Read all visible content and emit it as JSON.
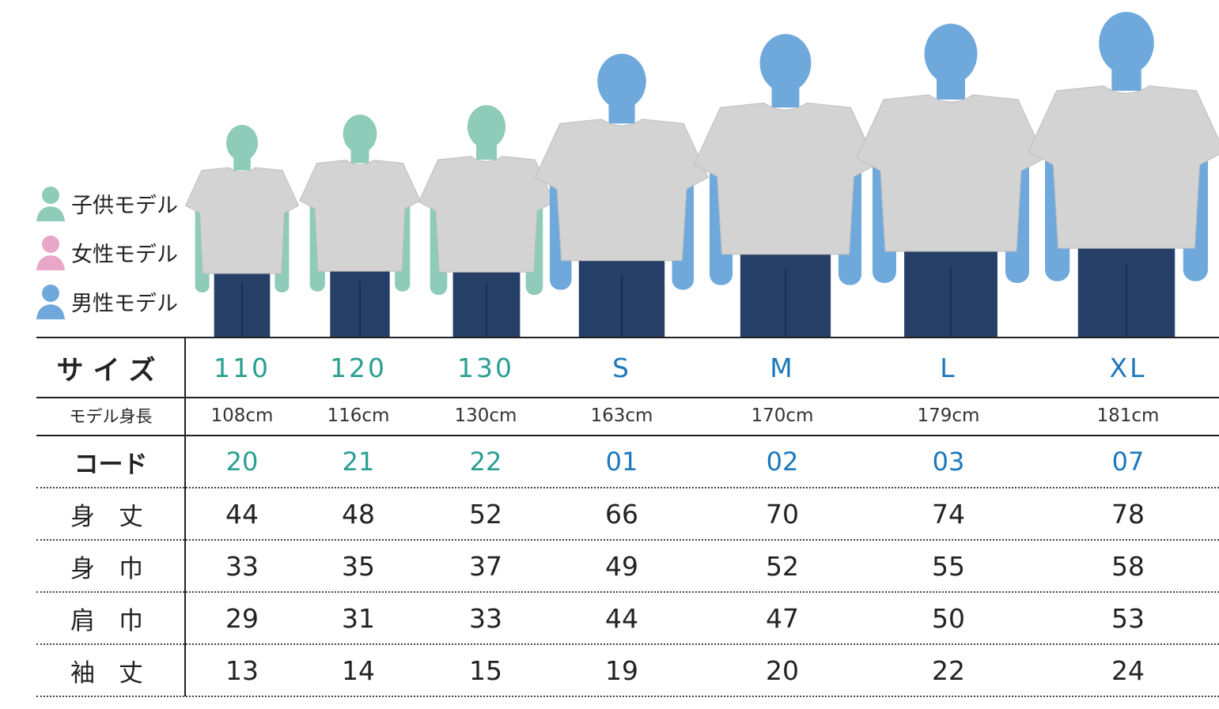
{
  "colors": {
    "child": "#8fcbb9",
    "female": "#e8a6c8",
    "male": "#6fa9dc",
    "kid_text": "#2a9e92",
    "adult_text": "#1b78bd",
    "shirt": "#d3d3d3",
    "jeans": "#263f66"
  },
  "legend": [
    {
      "label": "子供モデル",
      "icon": "child-person-icon",
      "color": "#8fcbb9"
    },
    {
      "label": "女性モデル",
      "icon": "female-person-icon",
      "color": "#e8a6c8"
    },
    {
      "label": "男性モデル",
      "icon": "male-person-icon",
      "color": "#6fa9dc"
    }
  ],
  "models": [
    {
      "size": "110",
      "type": "child",
      "height": "108cm",
      "code": "20",
      "shintake": "44",
      "mihaba": "33",
      "katahaba": "29",
      "sodetake": "13"
    },
    {
      "size": "120",
      "type": "child",
      "height": "116cm",
      "code": "21",
      "shintake": "48",
      "mihaba": "35",
      "katahaba": "31",
      "sodetake": "14"
    },
    {
      "size": "130",
      "type": "child",
      "height": "130cm",
      "code": "22",
      "shintake": "52",
      "mihaba": "37",
      "katahaba": "33",
      "sodetake": "15"
    },
    {
      "size": "S",
      "type": "male",
      "height": "163cm",
      "code": "01",
      "shintake": "66",
      "mihaba": "49",
      "katahaba": "44",
      "sodetake": "19"
    },
    {
      "size": "M",
      "type": "male",
      "height": "170cm",
      "code": "02",
      "shintake": "70",
      "mihaba": "52",
      "katahaba": "47",
      "sodetake": "20"
    },
    {
      "size": "L",
      "type": "male",
      "height": "179cm",
      "code": "03",
      "shintake": "74",
      "mihaba": "55",
      "katahaba": "50",
      "sodetake": "22"
    },
    {
      "size": "XL",
      "type": "male",
      "height": "181cm",
      "code": "07",
      "shintake": "78",
      "mihaba": "58",
      "katahaba": "53",
      "sodetake": "24"
    }
  ],
  "row_labels": {
    "size": "サイズ",
    "height": "モデル身長",
    "code": "コード",
    "shintake": "身丈",
    "mihaba": "身巾",
    "katahaba": "肩巾",
    "sodetake": "袖丈"
  }
}
